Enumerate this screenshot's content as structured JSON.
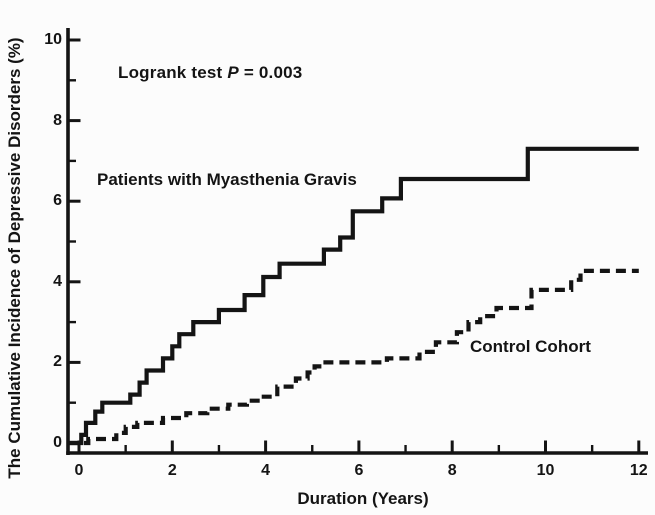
{
  "figure": {
    "background": "#fcfcfc",
    "ink": "#141414"
  },
  "annotation": {
    "prefix": "Logrank test ",
    "p_symbol": "P",
    "value": " = 0.003"
  },
  "series_labels": {
    "mg": "Patients with Myasthenia Gravis",
    "control": "Control Cohort"
  },
  "axes": {
    "x_title": "Duration (Years)",
    "y_title": "The Cumulative Incidence of Depressive Disorders (%)",
    "x_major_ticks": [
      0,
      2,
      4,
      6,
      8,
      10,
      12
    ],
    "x_minor_ticks": [
      1,
      3,
      5,
      7,
      9,
      11
    ],
    "y_major_ticks": [
      0,
      2,
      4,
      6,
      8,
      10
    ],
    "y_minor_ticks": [
      1,
      3,
      5,
      7,
      9
    ]
  },
  "chart_data": {
    "type": "line",
    "subtype": "step-cumulative-incidence",
    "title": "",
    "xlabel": "Duration (Years)",
    "ylabel": "The Cumulative Incidence of Depressive Disorders (%)",
    "xlim": [
      0,
      12
    ],
    "ylim": [
      0,
      10
    ],
    "grid": false,
    "legend_position": "inline-annotations",
    "annotation_text": "Logrank test P = 0.003",
    "series": [
      {
        "name": "Patients with Myasthenia Gravis",
        "line_style": "solid",
        "step_points": [
          [
            0,
            0
          ],
          [
            0.05,
            0.2
          ],
          [
            0.15,
            0.5
          ],
          [
            0.35,
            0.78
          ],
          [
            0.5,
            1.0
          ],
          [
            1.1,
            1.2
          ],
          [
            1.3,
            1.5
          ],
          [
            1.45,
            1.8
          ],
          [
            1.8,
            2.1
          ],
          [
            2.0,
            2.4
          ],
          [
            2.15,
            2.7
          ],
          [
            2.45,
            3.0
          ],
          [
            3.0,
            3.3
          ],
          [
            3.55,
            3.67
          ],
          [
            3.95,
            4.12
          ],
          [
            4.3,
            4.45
          ],
          [
            5.25,
            4.8
          ],
          [
            5.6,
            5.1
          ],
          [
            5.87,
            5.75
          ],
          [
            6.5,
            6.07
          ],
          [
            6.9,
            6.55
          ],
          [
            9.62,
            7.3
          ],
          [
            12,
            7.3
          ]
        ]
      },
      {
        "name": "Control Cohort",
        "line_style": "dashed",
        "step_points": [
          [
            0,
            0
          ],
          [
            0.2,
            0.1
          ],
          [
            0.8,
            0.25
          ],
          [
            1.0,
            0.4
          ],
          [
            1.25,
            0.5
          ],
          [
            1.8,
            0.62
          ],
          [
            2.3,
            0.74
          ],
          [
            2.75,
            0.85
          ],
          [
            3.2,
            0.95
          ],
          [
            3.6,
            1.05
          ],
          [
            3.9,
            1.15
          ],
          [
            4.25,
            1.4
          ],
          [
            4.65,
            1.6
          ],
          [
            4.9,
            1.75
          ],
          [
            5.05,
            1.9
          ],
          [
            5.2,
            2.0
          ],
          [
            6.6,
            2.1
          ],
          [
            7.3,
            2.26
          ],
          [
            7.65,
            2.5
          ],
          [
            8.1,
            2.75
          ],
          [
            8.35,
            3.0
          ],
          [
            8.6,
            3.15
          ],
          [
            8.95,
            3.35
          ],
          [
            9.7,
            3.8
          ],
          [
            10.55,
            4.05
          ],
          [
            10.75,
            4.27
          ],
          [
            12,
            4.27
          ]
        ]
      }
    ]
  }
}
